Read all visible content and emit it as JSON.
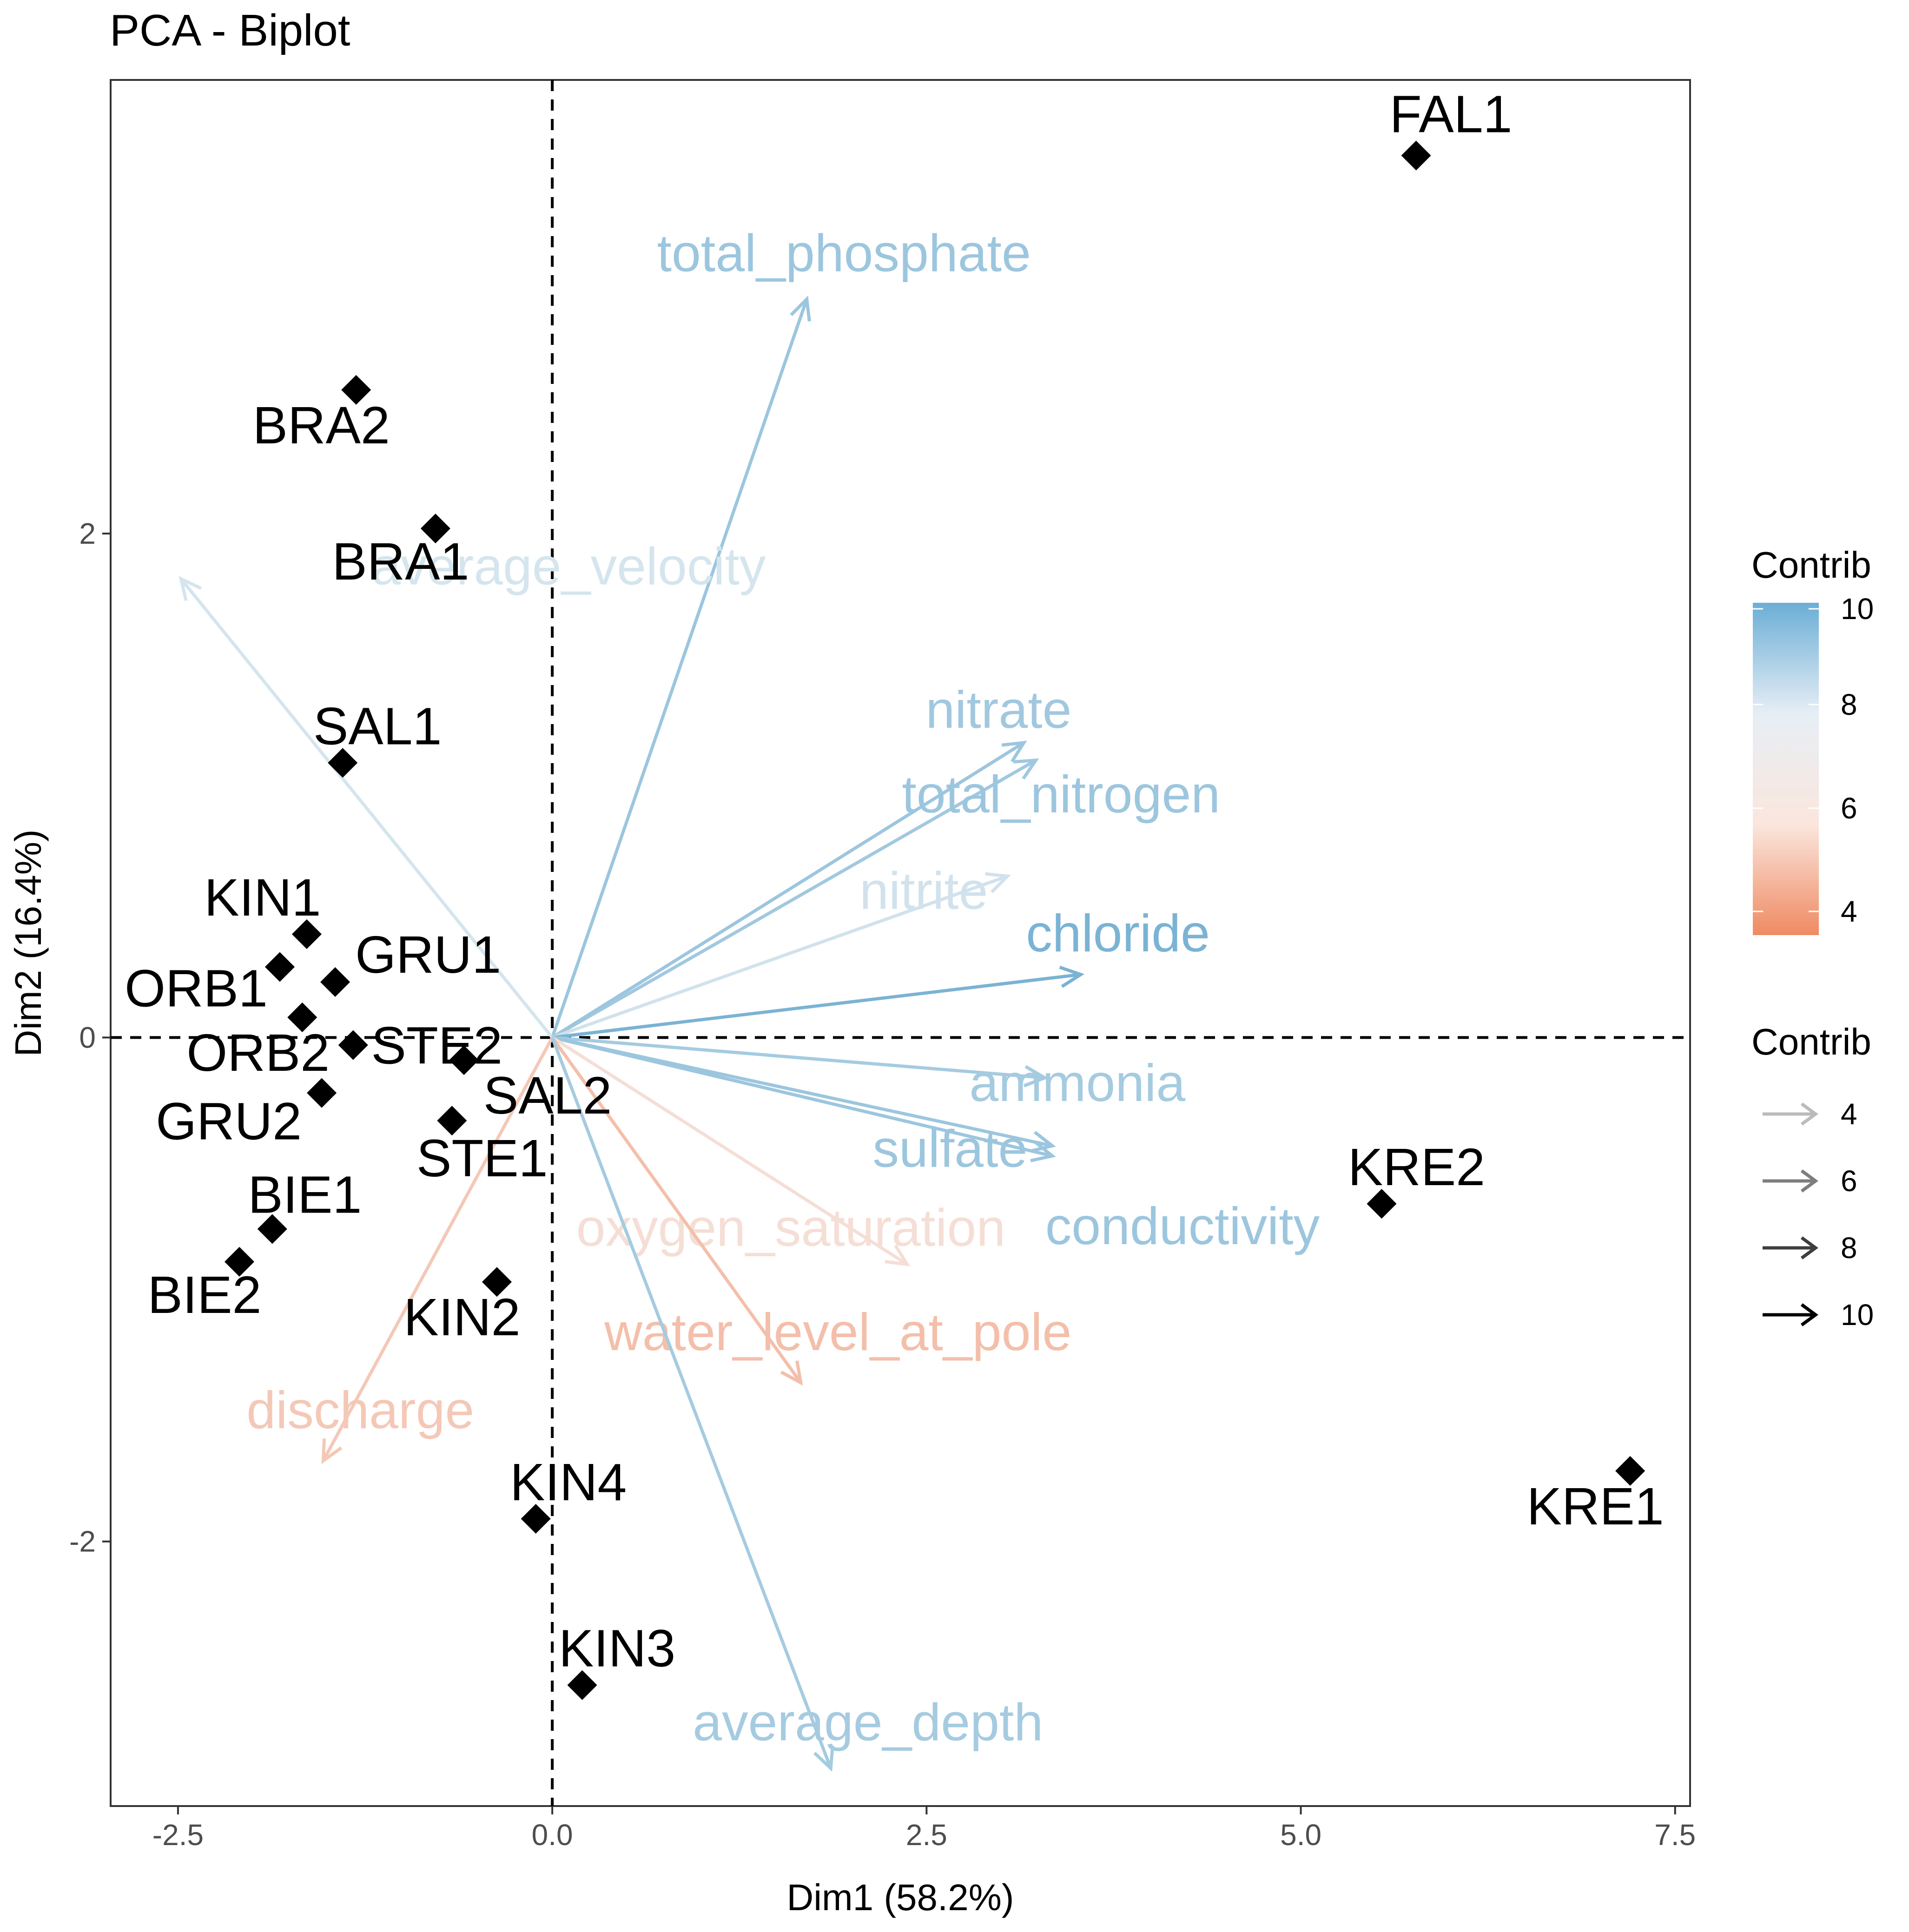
{
  "chart_data": {
    "type": "scatter",
    "title": "PCA - Biplot",
    "xlabel": "Dim1 (58.2%)",
    "ylabel": "Dim2 (16.4%)",
    "xlim": [
      -2.95,
      7.6
    ],
    "ylim": [
      -3.05,
      3.8
    ],
    "x_ticks": [
      -2.5,
      0.0,
      2.5,
      5.0,
      7.5
    ],
    "x_tick_labels": [
      "-2.5",
      "0.0",
      "2.5",
      "5.0",
      "7.5"
    ],
    "y_ticks": [
      -2,
      0,
      2
    ],
    "y_tick_labels": [
      "-2",
      "0",
      "2"
    ],
    "grid": false,
    "reference_lines": [
      {
        "axis": "x",
        "value": 0
      },
      {
        "axis": "y",
        "value": 0
      }
    ],
    "individuals": [
      {
        "label": "FAL1",
        "x": 5.77,
        "y": 3.5
      },
      {
        "label": "BRA2",
        "x": -1.31,
        "y": 2.57
      },
      {
        "label": "BRA1",
        "x": -0.78,
        "y": 2.02
      },
      {
        "label": "SAL1",
        "x": -1.4,
        "y": 1.09
      },
      {
        "label": "KIN1",
        "x": -1.64,
        "y": 0.41
      },
      {
        "label": "ORB1",
        "x": -1.82,
        "y": 0.28
      },
      {
        "label": "GRU1",
        "x": -1.45,
        "y": 0.22
      },
      {
        "label": "ORB2",
        "x": -1.67,
        "y": 0.08
      },
      {
        "label": "STE2",
        "x": -1.33,
        "y": -0.03
      },
      {
        "label": "SAL2",
        "x": -0.59,
        "y": -0.09
      },
      {
        "label": "GRU2",
        "x": -1.54,
        "y": -0.22
      },
      {
        "label": "STE1",
        "x": -0.67,
        "y": -0.33
      },
      {
        "label": "BIE1",
        "x": -1.87,
        "y": -0.76
      },
      {
        "label": "BIE2",
        "x": -2.09,
        "y": -0.89
      },
      {
        "label": "KIN2",
        "x": -0.37,
        "y": -0.97
      },
      {
        "label": "KIN4",
        "x": -0.11,
        "y": -1.91
      },
      {
        "label": "KIN3",
        "x": 0.2,
        "y": -2.57
      },
      {
        "label": "KRE2",
        "x": 5.54,
        "y": -0.66
      },
      {
        "label": "KRE1",
        "x": 7.2,
        "y": -1.72
      }
    ],
    "variables": [
      {
        "label": "total_phosphate",
        "x": 1.7,
        "y": 2.93,
        "contrib": 8.9
      },
      {
        "label": "average_velocity",
        "x": -2.48,
        "y": 1.82,
        "contrib": 7.7
      },
      {
        "label": "nitrate",
        "x": 3.23,
        "y": 1.1,
        "contrib": 8.8
      },
      {
        "label": "total_nitrogen",
        "x": 3.15,
        "y": 1.17,
        "contrib": 8.9
      },
      {
        "label": "nitrite",
        "x": 3.04,
        "y": 0.64,
        "contrib": 7.8
      },
      {
        "label": "chloride",
        "x": 3.53,
        "y": 0.25,
        "contrib": 9.6
      },
      {
        "label": "ammonia",
        "x": 3.29,
        "y": -0.16,
        "contrib": 8.7
      },
      {
        "label": "sulfate",
        "x": 3.34,
        "y": -0.43,
        "contrib": 8.9
      },
      {
        "label": "conductivity",
        "x": 3.34,
        "y": -0.47,
        "contrib": 8.9
      },
      {
        "label": "oxygen_saturation",
        "x": 2.37,
        "y": -0.9,
        "contrib": 6.2
      },
      {
        "label": "water_level_at_pole",
        "x": 1.66,
        "y": -1.37,
        "contrib": 5.2
      },
      {
        "label": "discharge",
        "x": -1.53,
        "y": -1.68,
        "contrib": 5.5
      },
      {
        "label": "average_depth",
        "x": 1.86,
        "y": -2.9,
        "contrib": 8.7
      }
    ],
    "legends": [
      {
        "title": "Contrib",
        "kind": "color-gradient",
        "ticks": [
          "10",
          "8",
          "6",
          "4"
        ],
        "colors": [
          "#6baed6",
          "#e6eef5",
          "#fbe6dd",
          "#ef8a62"
        ]
      },
      {
        "title": "Contrib",
        "kind": "alpha-arrows",
        "ticks": [
          "4",
          "6",
          "8",
          "10"
        ]
      }
    ],
    "legend_position": "right"
  }
}
